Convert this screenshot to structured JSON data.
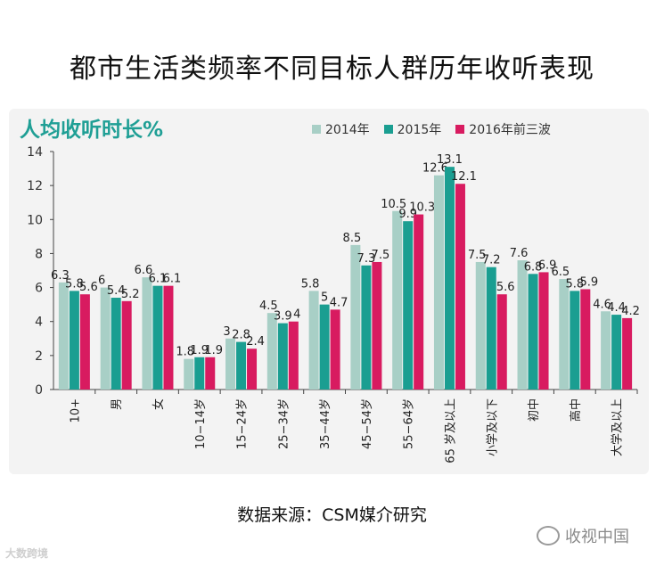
{
  "title": "都市生活类频率不同目标人群历年收听表现",
  "chart_data": {
    "type": "bar",
    "title": "人均收听时长%",
    "categories": [
      "10+",
      "男",
      "女",
      "10−14岁",
      "15−24岁",
      "25−34岁",
      "35−44岁",
      "45−54岁",
      "55−64岁",
      "65 岁及以上",
      "小学及以下",
      "初中",
      "高中",
      "大学及以上"
    ],
    "series": [
      {
        "name": "2014年",
        "color": "#a8cfc6",
        "values": [
          6.3,
          6,
          6.6,
          1.8,
          3,
          4.5,
          5.8,
          8.5,
          10.5,
          12.6,
          7.5,
          7.6,
          6.5,
          4.6
        ]
      },
      {
        "name": "2015年",
        "color": "#1a9e91",
        "values": [
          5.8,
          5.4,
          6.1,
          1.9,
          2.8,
          3.9,
          5,
          7.3,
          9.9,
          13.1,
          7.2,
          6.8,
          5.8,
          4.4
        ]
      },
      {
        "name": "2016年前三波",
        "color": "#d81b60",
        "values": [
          5.6,
          5.2,
          6.1,
          1.9,
          2.4,
          4,
          4.7,
          7.5,
          10.3,
          12.1,
          5.6,
          6.9,
          5.9,
          4.2
        ]
      }
    ],
    "ylim": [
      0,
      14
    ],
    "yticks": [
      0,
      2,
      4,
      6,
      8,
      10,
      12,
      14
    ],
    "grid": false,
    "legend_position": "top-right"
  },
  "footer": {
    "source": "数据来源：CSM媒介研究"
  },
  "watermark": {
    "text": "收视中国",
    "icon": "wechat-icon"
  },
  "corner_logo": {
    "text": "大数跨境"
  }
}
